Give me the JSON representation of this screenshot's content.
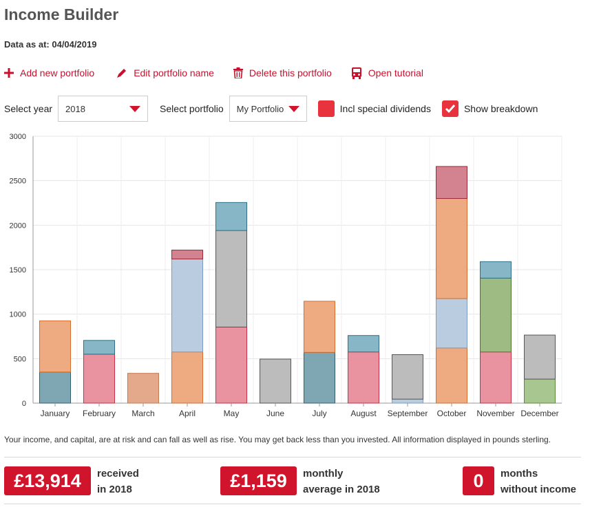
{
  "page": {
    "title": "Income Builder",
    "as_at": "Data as at: 04/04/2019"
  },
  "actions": [
    {
      "label": "Add new portfolio",
      "icon": "plus-icon"
    },
    {
      "label": "Edit portfolio name",
      "icon": "pencil-icon"
    },
    {
      "label": "Delete this portfolio",
      "icon": "trash-icon"
    },
    {
      "label": "Open tutorial",
      "icon": "bus-icon"
    }
  ],
  "controls": {
    "year_label": "Select year",
    "year_value": "2018",
    "portfolio_label": "Select portfolio",
    "portfolio_value": "My Portfolio",
    "special_label": "Incl special dividends",
    "special_checked": false,
    "breakdown_label": "Show breakdown",
    "breakdown_checked": true
  },
  "colors": {
    "accent": "#d0142c",
    "checkbox": "#e8323d"
  },
  "chart_data": {
    "type": "bar",
    "stacked": true,
    "categories": [
      "January",
      "February",
      "March",
      "April",
      "May",
      "June",
      "July",
      "August",
      "September",
      "October",
      "November",
      "December"
    ],
    "ylim": [
      0,
      3000
    ],
    "yticks": [
      0,
      500,
      1000,
      1500,
      2000,
      2500,
      3000
    ],
    "grid": true,
    "segments": [
      [
        {
          "value": 350,
          "color": "teal"
        },
        {
          "value": 575,
          "color": "orange"
        }
      ],
      [
        {
          "value": 550,
          "color": "red"
        },
        {
          "value": 155,
          "color": "blue"
        }
      ],
      [
        {
          "value": 335,
          "color": "brown"
        }
      ],
      [
        {
          "value": 575,
          "color": "orange"
        },
        {
          "value": 1045,
          "color": "lightblue"
        },
        {
          "value": 100,
          "color": "rose"
        }
      ],
      [
        {
          "value": 855,
          "color": "red"
        },
        {
          "value": 1085,
          "color": "grey"
        },
        {
          "value": 315,
          "color": "blue"
        }
      ],
      [
        {
          "value": 495,
          "color": "grey"
        }
      ],
      [
        {
          "value": 570,
          "color": "teal"
        },
        {
          "value": 575,
          "color": "orange"
        }
      ],
      [
        {
          "value": 575,
          "color": "red"
        },
        {
          "value": 185,
          "color": "blue"
        }
      ],
      [
        {
          "value": 45,
          "color": "lightblue"
        },
        {
          "value": 500,
          "color": "grey"
        }
      ],
      [
        {
          "value": 620,
          "color": "orange"
        },
        {
          "value": 555,
          "color": "lightblue"
        },
        {
          "value": 1125,
          "color": "orange"
        },
        {
          "value": 360,
          "color": "rose"
        }
      ],
      [
        {
          "value": 575,
          "color": "red"
        },
        {
          "value": 830,
          "color": "green"
        },
        {
          "value": 185,
          "color": "blue"
        }
      ],
      [
        {
          "value": 270,
          "color": "lightgreen"
        },
        {
          "value": 495,
          "color": "grey"
        }
      ]
    ],
    "palette": {
      "teal": {
        "fill": "#7ea6b3",
        "stroke": "#2f5f70"
      },
      "orange": {
        "fill": "#eeab82",
        "stroke": "#d26d2c"
      },
      "red": {
        "fill": "#e8939f",
        "stroke": "#c62f45"
      },
      "blue": {
        "fill": "#87b7c6",
        "stroke": "#2f6f85"
      },
      "brown": {
        "fill": "#e3a98a",
        "stroke": "#c47a50"
      },
      "lightblue": {
        "fill": "#bacde0",
        "stroke": "#7a9cc0"
      },
      "rose": {
        "fill": "#d2838f",
        "stroke": "#9a2838"
      },
      "grey": {
        "fill": "#bcbcbc",
        "stroke": "#555555"
      },
      "green": {
        "fill": "#9fbb84",
        "stroke": "#4b7a2e"
      },
      "lightgreen": {
        "fill": "#a8c790",
        "stroke": "#5d8a3c"
      }
    }
  },
  "disclaimer": "Your income, and capital, are at risk and can fall as well as rise. You may get back less than you invested. All information displayed in pounds sterling.",
  "stats": [
    {
      "value": "£13,914",
      "line1": "received",
      "line2": "in 2018"
    },
    {
      "value": "£1,159",
      "line1": "monthly",
      "line2": "average in 2018"
    },
    {
      "value": "0",
      "line1": "months",
      "line2": "without income"
    }
  ]
}
